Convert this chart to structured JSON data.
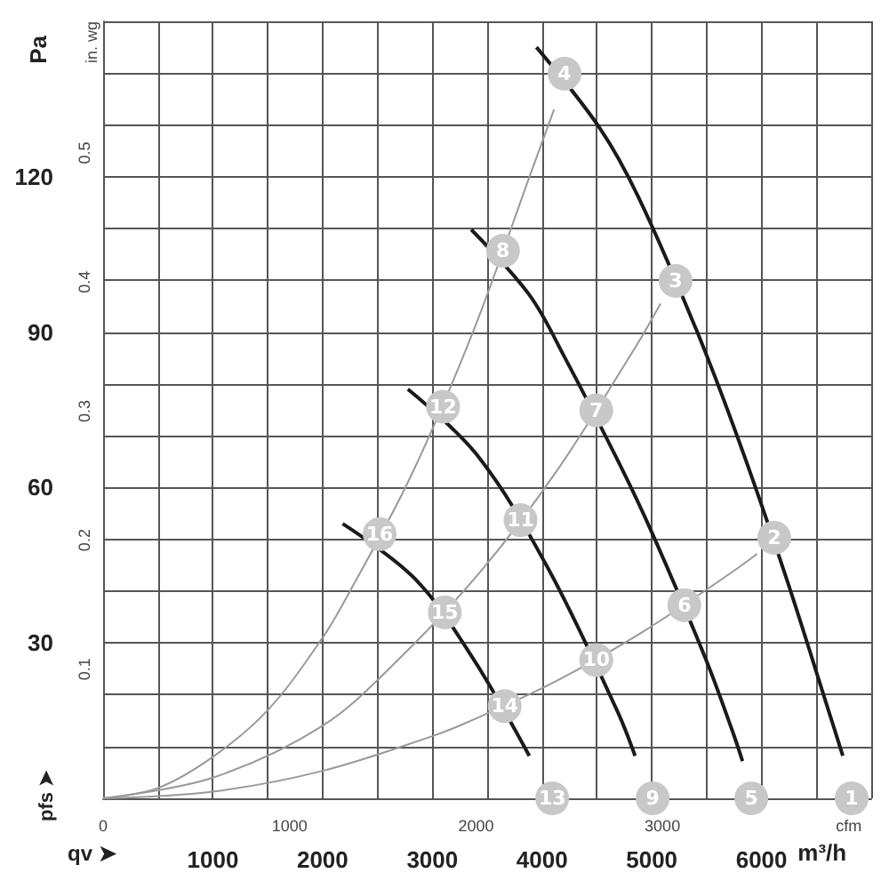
{
  "chart_data": {
    "type": "line",
    "xlabel": "m³/h",
    "ylabel": "Pa",
    "y2label": "in. wg",
    "grid": true,
    "annotations": [
      "qv ➤",
      "pfs ➤",
      {
        "text": "1",
        "x": 6822,
        "y": 0
      },
      {
        "text": "2",
        "x": 6116,
        "y": 50.3
      },
      {
        "text": "3",
        "x": 5217,
        "y": 99.9
      },
      {
        "text": "4",
        "x": 4205,
        "y": 139.9
      },
      {
        "text": "5",
        "x": 5907,
        "y": 0
      },
      {
        "text": "6",
        "x": 5297,
        "y": 37.3
      },
      {
        "text": "7",
        "x": 4494,
        "y": 74.9
      },
      {
        "text": "8",
        "x": 3644,
        "y": 105.7
      },
      {
        "text": "9",
        "x": 5008,
        "y": 0
      },
      {
        "text": "10",
        "x": 4494,
        "y": 26.7
      },
      {
        "text": "11",
        "x": 3804,
        "y": 53.7
      },
      {
        "text": "12",
        "x": 3098,
        "y": 75.6
      },
      {
        "text": "13",
        "x": 4093,
        "y": 0
      },
      {
        "text": "14",
        "x": 3660,
        "y": 17.8
      },
      {
        "text": "15",
        "x": 3114,
        "y": 35.9
      },
      {
        "text": "16",
        "x": 2520,
        "y": 51
      }
    ],
    "xlim": [
      0,
      7000
    ],
    "xticks": [
      {
        "value": 0,
        "label": null
      },
      {
        "value": 500,
        "label": null
      },
      1000,
      {
        "value": 1500,
        "label": null
      },
      2000,
      {
        "value": 2500,
        "label": null
      },
      3000,
      {
        "value": 3500,
        "label": null
      },
      4000,
      {
        "value": 4500,
        "label": null
      },
      5000,
      {
        "value": 5500,
        "label": null
      },
      6000,
      {
        "value": 6500,
        "label": null
      },
      {
        "value": 7000,
        "label": null
      }
    ],
    "ylim": [
      0,
      150
    ],
    "yticks": [
      {
        "value": 0,
        "label": null
      },
      {
        "value": 10,
        "label": null
      },
      {
        "value": 20,
        "label": null
      },
      30,
      {
        "value": 40,
        "label": null
      },
      {
        "value": 50,
        "label": null
      },
      60,
      {
        "value": 70,
        "label": null
      },
      {
        "value": 80,
        "label": null
      },
      90,
      {
        "value": 100,
        "label": null
      },
      {
        "value": 110,
        "label": null
      },
      120,
      {
        "value": 130,
        "label": null
      },
      {
        "value": 140,
        "label": null
      },
      {
        "value": 150,
        "label": null
      }
    ],
    "y2lim": [
      0,
      0.602
    ],
    "y2ticks": [
      0.1,
      0.2,
      0.3,
      0.4,
      0.5
    ],
    "x2lim": [
      0,
      4120
    ],
    "x2ticks": [
      0,
      1000,
      2000,
      3000,
      {
        "value": 4000,
        "label": "cfm"
      }
    ],
    "series": [
      {
        "color": "#999999",
        "x": [
          0,
          500,
          1000,
          1500,
          2000,
          2250,
          2800,
          3370,
          3920,
          4110
        ],
        "values": [
          0,
          2,
          8,
          17,
          31,
          40,
          62,
          90,
          122,
          133
        ]
      },
      {
        "color": "#999999",
        "x": [
          0,
          1000,
          2000,
          2700,
          3460,
          4150,
          4860,
          5080
        ],
        "values": [
          0,
          4,
          14,
          27,
          44.3,
          63.7,
          87.4,
          95.5
        ]
      },
      {
        "color": "#999999",
        "x": [
          0,
          1000,
          2000,
          3000,
          3300,
          4080,
          4900,
          5700,
          5960
        ],
        "values": [
          0,
          1.3,
          5.3,
          12,
          14.5,
          22.1,
          31.9,
          43.2,
          47.2
        ]
      },
      {
        "color": "#1a1a1a",
        "x": [
          3949,
          4526,
          4880,
          5409,
          5811,
          6228,
          6613,
          6741
        ],
        "values": [
          145,
          129.4,
          116,
          90.3,
          68,
          42.4,
          16.8,
          8.2
        ]
      },
      {
        "color": "#1a1a1a",
        "x": [
          3355,
          3884,
          4205,
          4719,
          5008,
          5490,
          5730,
          5827
        ],
        "values": [
          109.8,
          97.2,
          85.2,
          64,
          51,
          27,
          13.3,
          7.2
        ]
      },
      {
        "color": "#1a1a1a",
        "x": [
          2777,
          3403,
          4045,
          4687,
          4848
        ],
        "values": [
          79,
          66.4,
          44.8,
          16.8,
          8.2
        ]
      },
      {
        "color": "#1a1a1a",
        "x": [
          2183,
          2841,
          3371,
          3884
        ],
        "values": [
          53,
          42.4,
          27,
          8.2
        ]
      }
    ]
  }
}
